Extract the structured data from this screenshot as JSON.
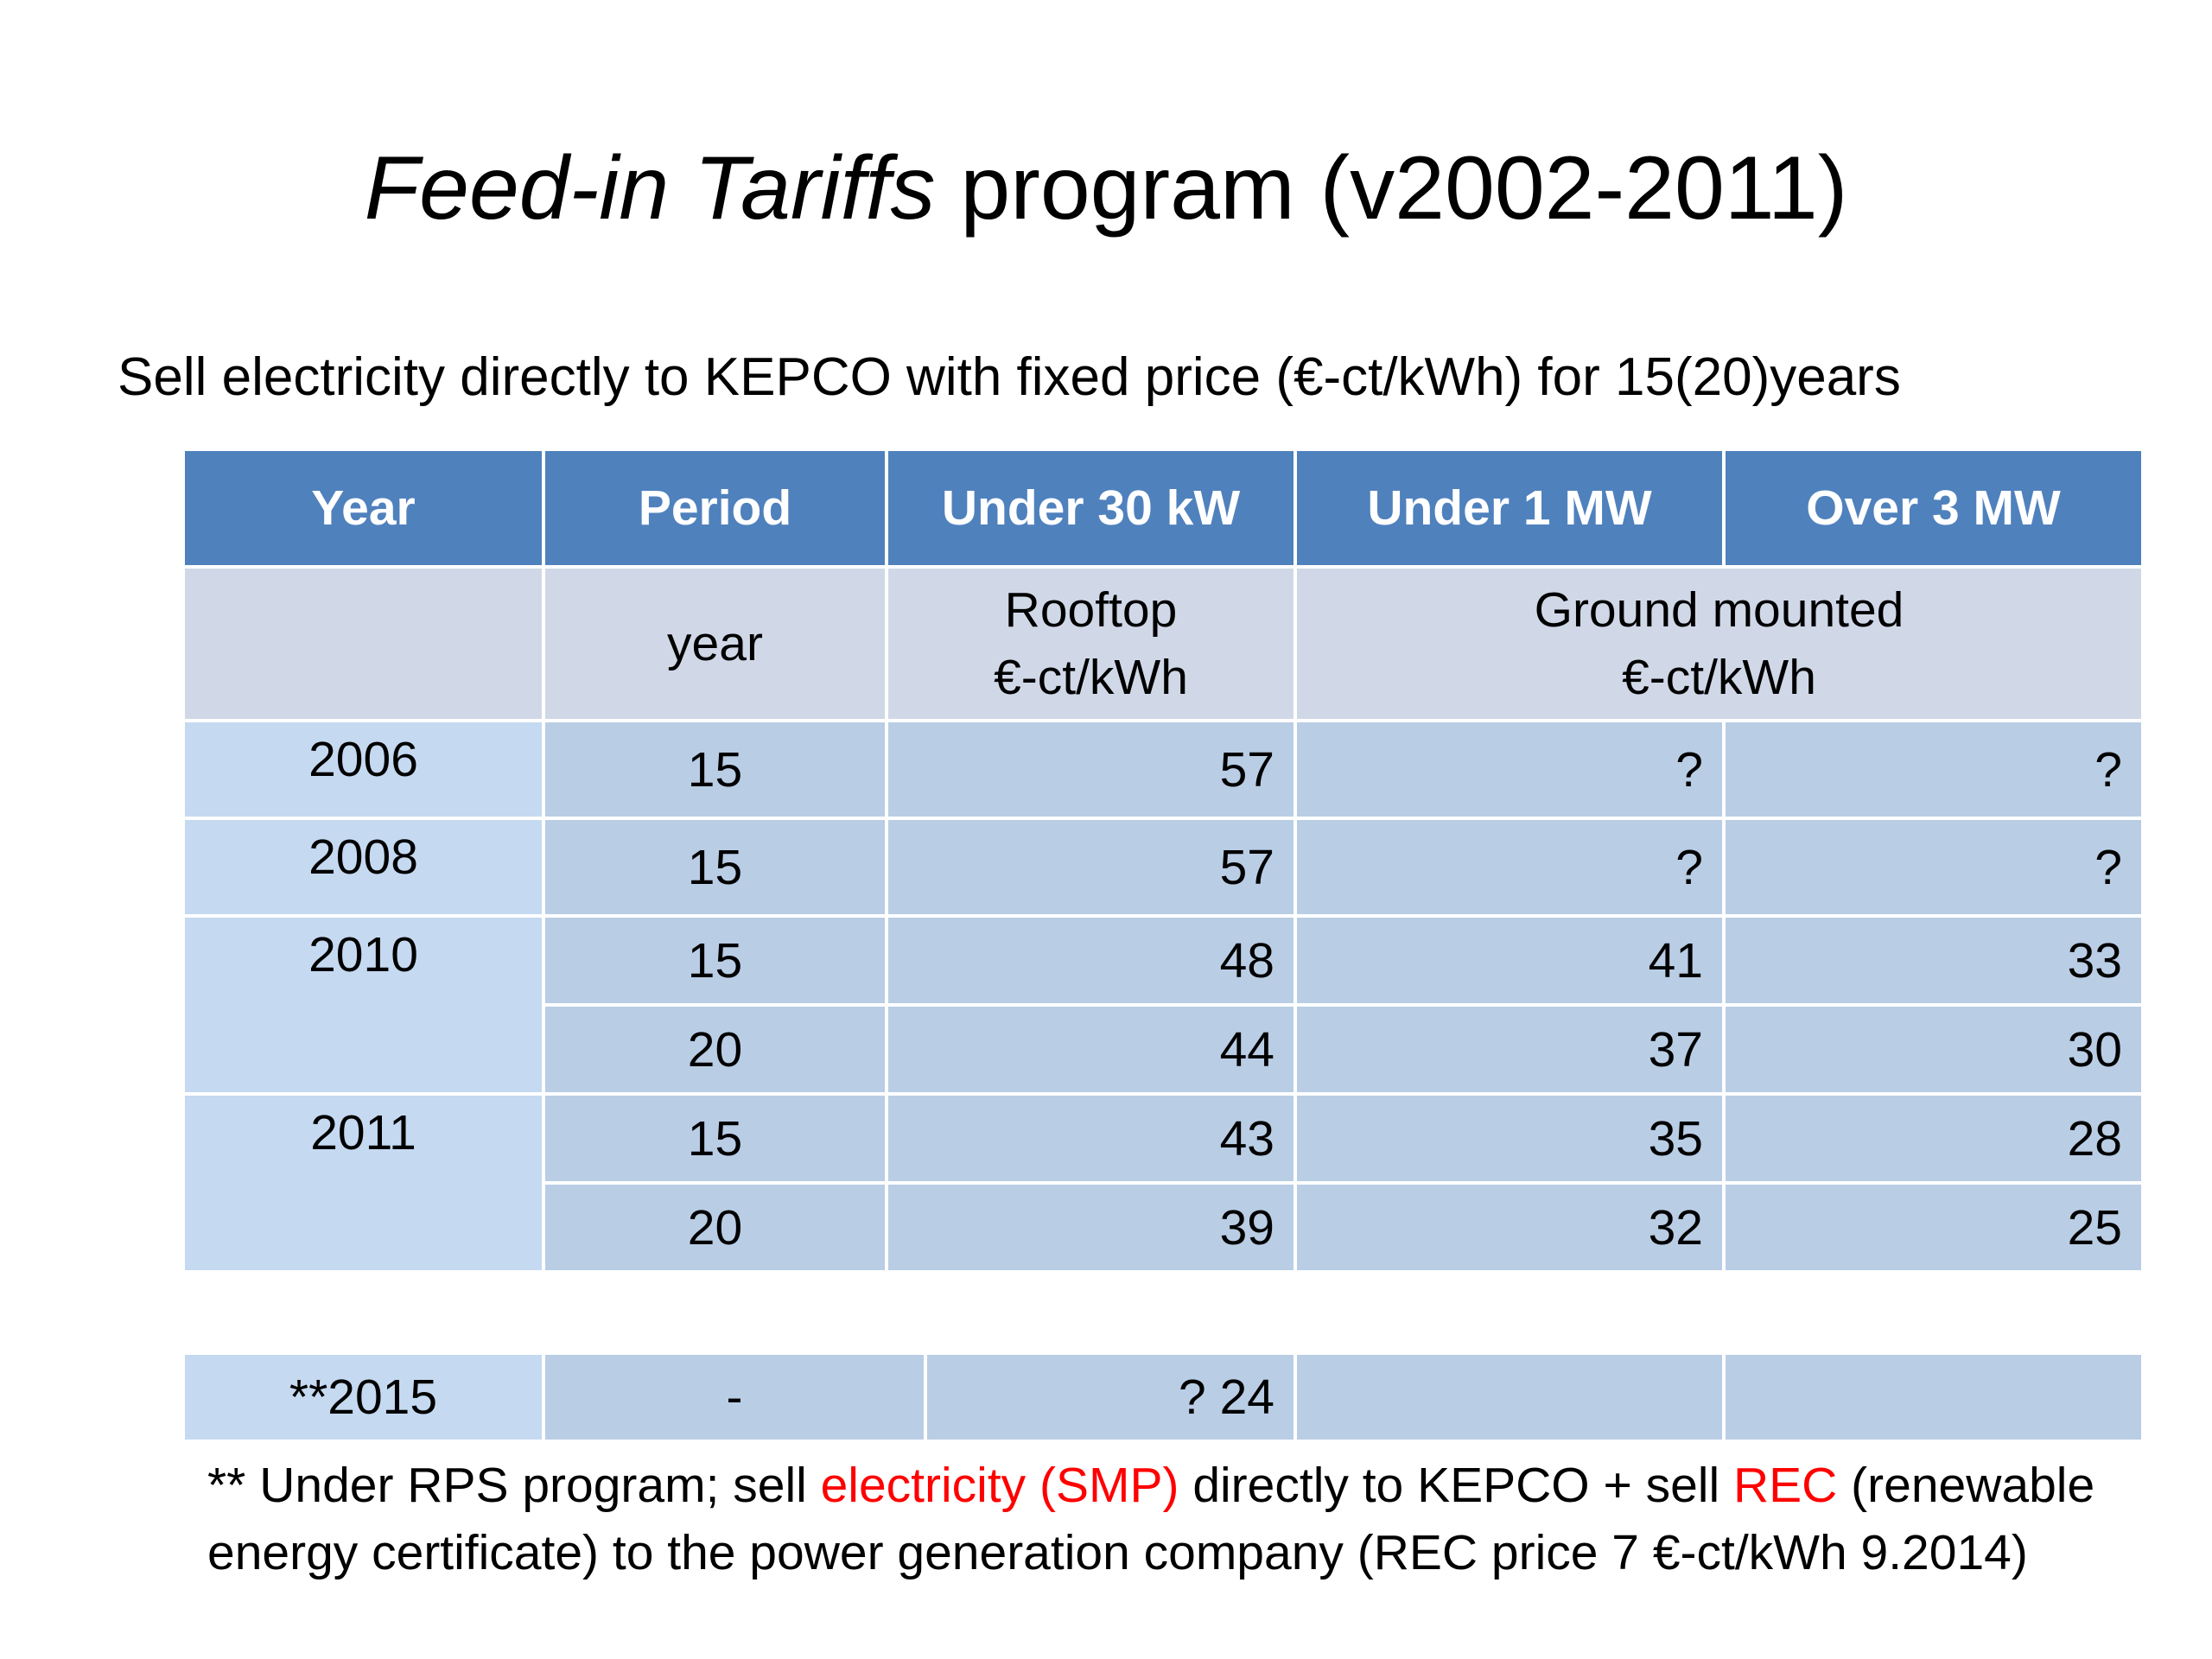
{
  "title": {
    "italic_part": "Feed-in Tariffs",
    "rest": " program (v2002-2011)"
  },
  "subtitle": "Sell electricity directly to KEPCO with fixed price (€-ct/kWh) for 15(20)years",
  "table": {
    "headers": [
      "Year",
      "Period",
      "Under 30 kW",
      "Under 1 MW",
      "Over 3 MW"
    ],
    "subheader": {
      "year": "",
      "period": "year",
      "rooftop_line1": "Rooftop",
      "rooftop_line2": "€-ct/kWh",
      "ground_line1": "Ground mounted",
      "ground_line2": "€-ct/kWh"
    },
    "rows": [
      {
        "year": "2006",
        "period": "15",
        "under30": "57",
        "under1": "?",
        "over3": "?"
      },
      {
        "year": "2008",
        "period": "15",
        "under30": "57",
        "under1": "?",
        "over3": "?"
      },
      {
        "year": "2010",
        "period": "15",
        "under30": "48",
        "under1": "41",
        "over3": "33"
      },
      {
        "year": "",
        "period": "20",
        "under30": "44",
        "under1": "37",
        "over3": "30"
      },
      {
        "year": "2011",
        "period": "15",
        "under30": "43",
        "under1": "35",
        "over3": "28"
      },
      {
        "year": "",
        "period": "20",
        "under30": "39",
        "under1": "32",
        "over3": "25"
      }
    ]
  },
  "footer_row": {
    "year": "**2015",
    "period": "-",
    "value": "? 24",
    "under1": "",
    "over3": ""
  },
  "note": {
    "part1": "** Under RPS program; sell ",
    "red1": "electricity (SMP)",
    "part2": " directly to KEPCO + sell ",
    "red2": "REC",
    "part3": " (renewable energy certificate) to the power generation company (REC price 7 €-ct/kWh 9.2014)"
  },
  "colors": {
    "header_bg": "#4f81bd",
    "subheader_bg": "#d0d8e8",
    "cell_bg": "#b9cde5",
    "year_cell_bg": "#c5d9f1",
    "highlight_text": "#ff0000"
  }
}
